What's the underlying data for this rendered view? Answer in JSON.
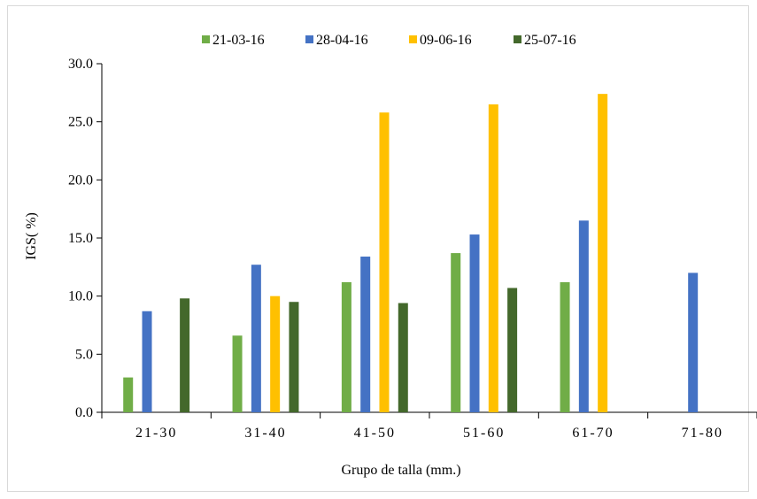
{
  "chart_data": {
    "type": "bar",
    "title": "",
    "xlabel": "Grupo de talla (mm.)",
    "ylabel": "IGS( %)",
    "ylim": [
      0,
      30
    ],
    "yticks": [
      "0.0",
      "5.0",
      "10.0",
      "15.0",
      "20.0",
      "25.0",
      "30.0"
    ],
    "categories": [
      "21-30",
      "31-40",
      "41-50",
      "51-60",
      "61-70",
      "71-80"
    ],
    "legend_position": "top",
    "grid": false,
    "series": [
      {
        "name": "21-03-16",
        "color": "#70ad47",
        "values": [
          3.0,
          6.6,
          11.2,
          13.7,
          11.2,
          null
        ]
      },
      {
        "name": "28-04-16",
        "color": "#4472c4",
        "values": [
          8.7,
          12.7,
          13.4,
          15.3,
          16.5,
          12.0
        ]
      },
      {
        "name": "09-06-16",
        "color": "#ffc000",
        "values": [
          null,
          10.0,
          25.8,
          26.5,
          27.4,
          null
        ]
      },
      {
        "name": "25-07-16",
        "color": "#43682b",
        "values": [
          9.8,
          9.5,
          9.4,
          10.7,
          null,
          null
        ]
      }
    ]
  }
}
